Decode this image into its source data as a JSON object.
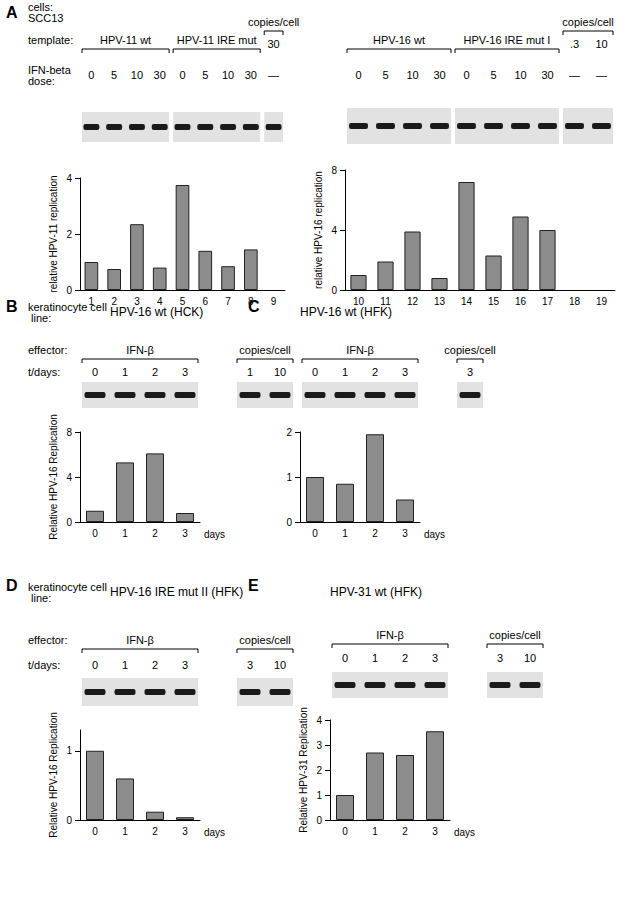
{
  "chart_data": [
    {
      "type": "bar",
      "panel": "A",
      "row_labels": [
        "cells: SCC13",
        "template:",
        "IFN-beta dose:"
      ],
      "groups": [
        {
          "label": "HPV-11 wt",
          "lanes": [
            "0",
            "5",
            "10",
            "30"
          ]
        },
        {
          "label": "HPV-11 IRE mut",
          "lanes": [
            "0",
            "5",
            "10",
            "30"
          ]
        },
        {
          "label": "copies/cell",
          "lanes": [
            "30"
          ],
          "marks": [
            "—"
          ]
        }
      ],
      "categories": [
        "1",
        "2",
        "3",
        "4",
        "5",
        "6",
        "7",
        "8",
        "9"
      ],
      "values": [
        1,
        0.75,
        2.35,
        0.8,
        3.75,
        1.4,
        0.85,
        1.45,
        null
      ],
      "color": "#8c8c8c",
      "y_label": "relative HPV-11 replication",
      "ylim": [
        0,
        4
      ],
      "yticks": [
        0,
        2,
        4
      ]
    },
    {
      "type": "bar",
      "groups": [
        {
          "label": "HPV-16 wt",
          "lanes": [
            "0",
            "5",
            "10",
            "30"
          ]
        },
        {
          "label": "HPV-16 IRE mut I",
          "lanes": [
            "0",
            "5",
            "10",
            "30"
          ]
        },
        {
          "label": "copies/cell",
          "lanes": [
            ".3",
            "10"
          ],
          "marks": [
            "—",
            "—"
          ]
        }
      ],
      "categories": [
        "10",
        "11",
        "12",
        "13",
        "14",
        "15",
        "16",
        "17",
        "18",
        "19"
      ],
      "values": [
        1,
        1.9,
        3.9,
        0.8,
        7.2,
        2.3,
        4.9,
        4.0,
        null,
        null
      ],
      "color": "#8c8c8c",
      "y_label": "relative HPV-16 replication",
      "ylim": [
        0,
        8
      ],
      "yticks": [
        0,
        4,
        8
      ]
    },
    {
      "type": "bar",
      "panel": "B",
      "title": "HPV-16 wt (HCK)",
      "row_labels": [
        "keratinocyte cell line:",
        "effector:",
        "t/days:"
      ],
      "groups": [
        {
          "label": "IFN-β",
          "lanes": [
            "0",
            "1",
            "2",
            "3"
          ]
        },
        {
          "label": "copies/cell",
          "lanes": [
            "1",
            "10"
          ]
        }
      ],
      "categories": [
        "0",
        "1",
        "2",
        "3"
      ],
      "x_label": "days",
      "values": [
        1,
        5.3,
        6.1,
        0.8
      ],
      "color": "#8c8c8c",
      "y_label": "Relative HPV-16 Replication",
      "ylim": [
        0,
        8
      ],
      "yticks": [
        0,
        4,
        8
      ]
    },
    {
      "type": "bar",
      "panel": "C",
      "title": "HPV-16 wt (HFK)",
      "groups": [
        {
          "label": "IFN-β",
          "lanes": [
            "0",
            "1",
            "2",
            "3"
          ]
        },
        {
          "label": "copies/cell",
          "lanes": [
            "3"
          ]
        }
      ],
      "categories": [
        "0",
        "1",
        "2",
        "3"
      ],
      "x_label": "days",
      "values": [
        1,
        0.85,
        1.95,
        0.5
      ],
      "color": "#8c8c8c",
      "ylim": [
        0,
        2
      ],
      "yticks": [
        0,
        1,
        2
      ]
    },
    {
      "type": "bar",
      "panel": "D",
      "title": "HPV-16 IRE mut II (HFK)",
      "row_labels": [
        "keratinocyte cell line:",
        "effector:",
        "t/days:"
      ],
      "groups": [
        {
          "label": "IFN-β",
          "lanes": [
            "0",
            "1",
            "2",
            "3"
          ]
        },
        {
          "label": "copies/cell",
          "lanes": [
            "3",
            "10"
          ]
        }
      ],
      "categories": [
        "0",
        "1",
        "2",
        "3"
      ],
      "x_label": "days",
      "values": [
        1,
        0.6,
        0.12,
        0.04
      ],
      "color": "#8c8c8c",
      "y_label": "Relative HPV-16 Replication",
      "ylim": [
        0,
        1.3
      ],
      "yticks": [
        0,
        1
      ]
    },
    {
      "type": "bar",
      "panel": "E",
      "title": "HPV-31 wt (HFK)",
      "groups": [
        {
          "label": "IFN-β",
          "lanes": [
            "0",
            "1",
            "2",
            "3"
          ]
        },
        {
          "label": "copies/cell",
          "lanes": [
            "3",
            "10"
          ]
        }
      ],
      "categories": [
        "0",
        "1",
        "2",
        "3"
      ],
      "x_label": "days",
      "values": [
        1,
        2.7,
        2.6,
        3.55
      ],
      "color": "#8c8c8c",
      "y_label": "Relative HPV-31 Replication",
      "ylim": [
        0,
        4
      ],
      "yticks": [
        0,
        1,
        2,
        3,
        4
      ]
    }
  ]
}
